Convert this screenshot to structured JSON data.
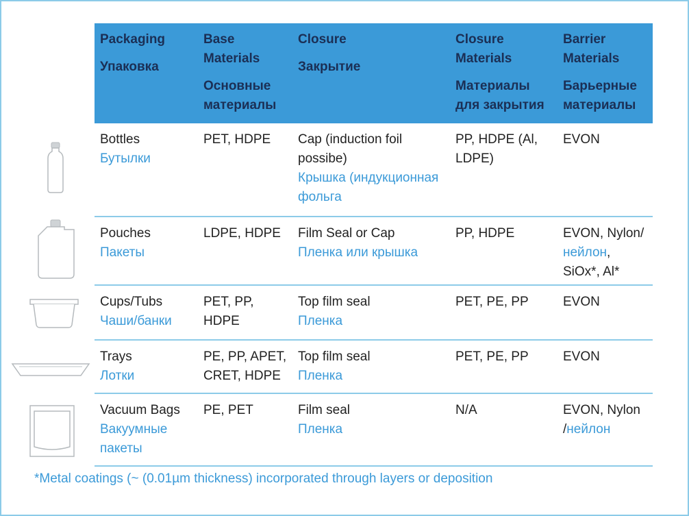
{
  "headers": [
    {
      "en": "Packaging",
      "ru": "Упаковка"
    },
    {
      "en": "Base Materials",
      "ru": "Основные материалы"
    },
    {
      "en": "Closure",
      "ru": "Закрытие"
    },
    {
      "en": "Closure Materials",
      "ru": "Материалы для закрытия"
    },
    {
      "en": "Barrier Materials",
      "ru": "Барьерные материалы"
    }
  ],
  "rows": [
    {
      "icon": "bottle-icon",
      "packaging_en": "Bottles",
      "packaging_ru": "Бутылки",
      "base": "PET, HDPE",
      "closure_en": "Cap (induction foil possibe)",
      "closure_ru": "Крышка (индукционная фольга",
      "closure_materials": "PP, HDPE (Al, LDPE)",
      "barrier_a": "EVON",
      "barrier_ru": "",
      "barrier_b": ""
    },
    {
      "icon": "pouch-icon",
      "packaging_en": "Pouches",
      "packaging_ru": "Пакеты",
      "base": "LDPE, HDPE",
      "closure_en": "Film Seal or Cap",
      "closure_ru": "Пленка или крышка",
      "closure_materials": "PP, HDPE",
      "barrier_a": "EVON, Nylon/",
      "barrier_ru": "нейлон",
      "barrier_b": ", SiOx*, Al*"
    },
    {
      "icon": "cup-icon",
      "packaging_en": "Cups/Tubs",
      "packaging_ru": "Чаши/банки",
      "base": "PET, PP, HDPE",
      "closure_en": "Top film seal",
      "closure_ru": "Пленка",
      "closure_materials": "PET, PE, PP",
      "barrier_a": "EVON",
      "barrier_ru": "",
      "barrier_b": ""
    },
    {
      "icon": "tray-icon",
      "packaging_en": "Trays",
      "packaging_ru": "Лотки",
      "base": "PE, PP, APET, CRET, HDPE",
      "closure_en": "Top film seal",
      "closure_ru": "Пленка",
      "closure_materials": "PET, PE, PP",
      "barrier_a": "EVON",
      "barrier_ru": "",
      "barrier_b": ""
    },
    {
      "icon": "vacuum-bag-icon",
      "packaging_en": "Vacuum Bags",
      "packaging_ru": "Вакуумные пакеты",
      "base": "PE, PET",
      "closure_en": "Film seal",
      "closure_ru": "Пленка",
      "closure_materials": "N/A",
      "barrier_a": "EVON, Nylon /",
      "barrier_ru": "нейлон",
      "barrier_b": ""
    }
  ],
  "footnote": "*Metal coatings (~ (0.01µm thickness) incorporated through layers or deposition",
  "colors": {
    "header_bg": "#3b9ad8",
    "header_text": "#1b2f55",
    "russian_text": "#3b9ad8",
    "rule": "#8ccbe8"
  }
}
